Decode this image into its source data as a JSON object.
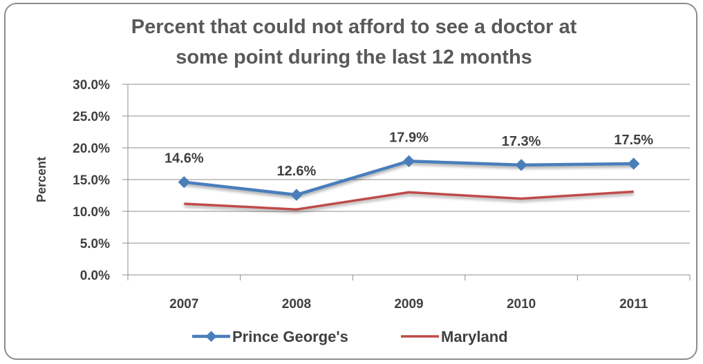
{
  "chart_data": {
    "type": "line",
    "title_lines": [
      "Percent that could not afford to see a doctor at",
      "some point during the last 12 months"
    ],
    "xlabel": "",
    "ylabel": "Percent",
    "categories": [
      "2007",
      "2008",
      "2009",
      "2010",
      "2011"
    ],
    "ylim": [
      0,
      30
    ],
    "yticks": [
      "0.0%",
      "5.0%",
      "10.0%",
      "15.0%",
      "20.0%",
      "25.0%",
      "30.0%"
    ],
    "grid": true,
    "legend_position": "bottom",
    "series": [
      {
        "name": "Prince George's",
        "values": [
          14.6,
          12.6,
          17.9,
          17.3,
          17.5
        ],
        "labels": [
          "14.6%",
          "12.6%",
          "17.9%",
          "17.3%",
          "17.5%"
        ],
        "color": "#4a7ebb",
        "marker": "diamond"
      },
      {
        "name": "Maryland",
        "values": [
          11.2,
          10.3,
          13.0,
          12.0,
          13.1
        ],
        "color": "#be4b48",
        "marker": "none"
      }
    ]
  }
}
